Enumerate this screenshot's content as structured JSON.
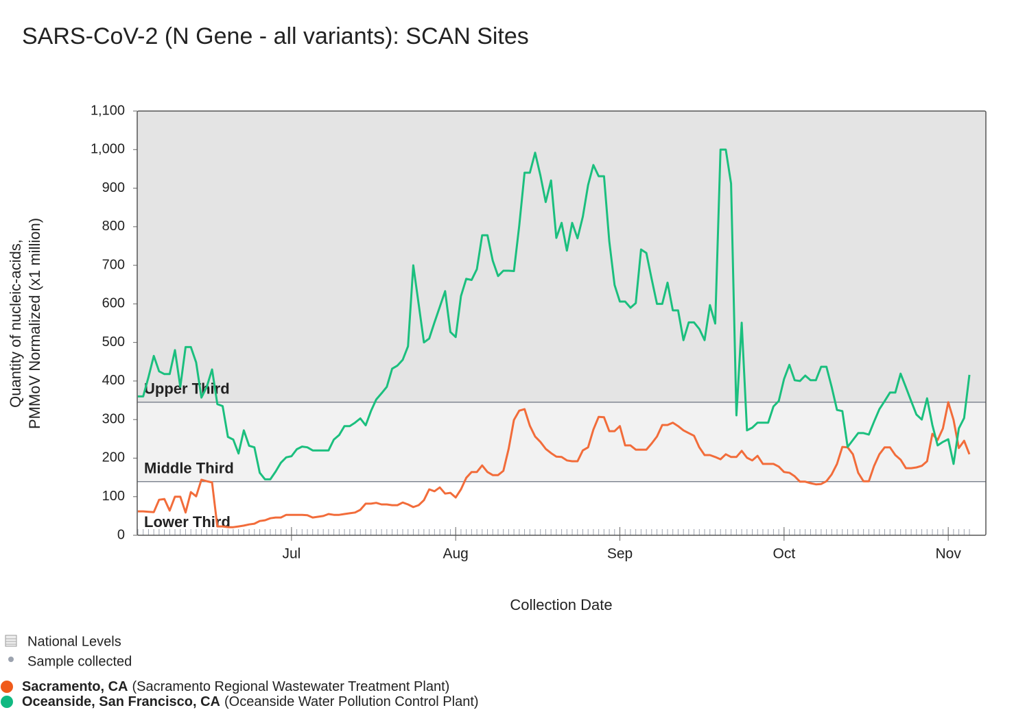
{
  "chart_data": {
    "type": "line",
    "title": "SARS-CoV-2 (N Gene - all variants): SCAN Sites",
    "x_label": "Collection Date",
    "y_label": [
      "Quantity of nucleic-acids,",
      "PMMoV Normalized (x1 million)"
    ],
    "ylim": [
      0,
      1100
    ],
    "yticks": [
      0,
      100,
      200,
      300,
      400,
      500,
      600,
      700,
      800,
      900,
      {
        "value": 1000,
        "label": "1,000"
      },
      {
        "value": 1100,
        "label": "1,100"
      }
    ],
    "bands": [
      {
        "label": "Lower Third",
        "from": 0,
        "to": 139,
        "color": "#ffffff"
      },
      {
        "label": "Middle Third",
        "from": 139,
        "to": 345,
        "color": "#f2f2f2"
      },
      {
        "label": "Upper Third",
        "from": 345,
        "to": 1100,
        "color": "#e4e4e4"
      }
    ],
    "legend_extra": [
      "National Levels",
      "Sample collected"
    ],
    "categories": [
      null,
      null,
      null,
      null,
      null,
      null,
      null,
      null,
      null,
      null,
      null,
      null,
      null,
      null,
      null,
      null,
      null,
      null,
      null,
      null,
      null,
      null,
      null,
      null,
      null,
      null,
      null,
      null,
      null,
      "Jul",
      null,
      null,
      null,
      null,
      null,
      null,
      null,
      null,
      null,
      null,
      null,
      null,
      null,
      null,
      null,
      null,
      null,
      null,
      null,
      null,
      null,
      null,
      null,
      null,
      null,
      null,
      null,
      null,
      null,
      null,
      "Aug",
      null,
      null,
      null,
      null,
      null,
      null,
      null,
      null,
      null,
      null,
      null,
      null,
      null,
      null,
      null,
      null,
      null,
      null,
      null,
      null,
      null,
      null,
      null,
      null,
      null,
      null,
      null,
      null,
      null,
      null,
      "Sep",
      null,
      null,
      null,
      null,
      null,
      null,
      null,
      null,
      null,
      null,
      null,
      null,
      null,
      null,
      null,
      null,
      null,
      null,
      null,
      null,
      null,
      null,
      null,
      null,
      null,
      null,
      null,
      null,
      null,
      null,
      "Oct",
      null,
      null,
      null,
      null,
      null,
      null,
      null,
      null,
      null,
      null,
      null,
      null,
      null,
      null,
      null,
      null,
      null,
      null,
      null,
      null,
      null,
      null,
      null,
      null,
      null,
      null,
      null,
      null,
      null,
      null,
      "Nov",
      null,
      null,
      null,
      null
    ],
    "series": [
      {
        "name": "Sacramento, CA",
        "site": "(Sacramento Regional Wastewater Treatment Plant)",
        "color": "#f26c3a",
        "marker_color": "#f05a1a",
        "values": [
          62,
          62,
          61,
          60,
          92,
          94,
          64,
          100,
          100,
          59,
          112,
          101,
          144,
          140,
          137,
          23,
          23,
          21,
          21,
          23,
          25,
          28,
          30,
          37,
          39,
          44,
          46,
          46,
          53,
          53,
          53,
          53,
          52,
          46,
          48,
          50,
          55,
          53,
          53,
          55,
          57,
          59,
          66,
          82,
          82,
          84,
          80,
          80,
          78,
          78,
          85,
          80,
          73,
          78,
          91,
          119,
          114,
          124,
          108,
          110,
          98,
          119,
          149,
          164,
          164,
          181,
          164,
          156,
          156,
          167,
          224,
          299,
          323,
          327,
          284,
          256,
          242,
          224,
          213,
          204,
          203,
          194,
          192,
          192,
          220,
          228,
          274,
          307,
          306,
          270,
          270,
          283,
          233,
          233,
          222,
          222,
          222,
          238,
          256,
          286,
          286,
          292,
          283,
          272,
          265,
          258,
          228,
          208,
          208,
          203,
          197,
          210,
          203,
          203,
          219,
          201,
          194,
          206,
          185,
          185,
          185,
          178,
          164,
          162,
          153,
          139,
          139,
          135,
          132,
          133,
          140,
          158,
          185,
          229,
          228,
          210,
          162,
          140,
          140,
          180,
          210,
          228,
          228,
          208,
          196,
          174,
          174,
          176,
          180,
          192,
          263,
          247,
          277,
          345,
          299,
          226,
          245,
          210
        ]
      },
      {
        "name": "Oceanside, San Francisco, CA",
        "site": "(Oceanside Water Pollution Control Plant)",
        "color": "#1bbf7e",
        "marker_color": "#10b981",
        "values": [
          360,
          360,
          410,
          465,
          425,
          418,
          418,
          480,
          385,
          488,
          488,
          448,
          357,
          385,
          430,
          340,
          335,
          255,
          248,
          212,
          272,
          232,
          228,
          162,
          145,
          145,
          165,
          188,
          202,
          205,
          223,
          230,
          228,
          220,
          220,
          220,
          220,
          248,
          260,
          283,
          283,
          292,
          303,
          285,
          322,
          352,
          368,
          385,
          432,
          440,
          455,
          490,
          700,
          600,
          500,
          510,
          552,
          592,
          633,
          527,
          514,
          620,
          665,
          662,
          690,
          778,
          778,
          712,
          672,
          686,
          686,
          685,
          802,
          940,
          940,
          992,
          933,
          864,
          920,
          771,
          810,
          738,
          810,
          770,
          826,
          908,
          960,
          931,
          931,
          762,
          649,
          606,
          606,
          590,
          602,
          741,
          732,
          665,
          600,
          600,
          655,
          583,
          583,
          506,
          552,
          552,
          535,
          506,
          597,
          549,
          1000,
          1000,
          912,
          311,
          551,
          272,
          279,
          292,
          292,
          292,
          334,
          348,
          405,
          442,
          402,
          400,
          414,
          402,
          402,
          437,
          437,
          384,
          325,
          322,
          229,
          247,
          265,
          265,
          261,
          295,
          327,
          348,
          370,
          370,
          419,
          384,
          348,
          313,
          300,
          355,
          286,
          233,
          242,
          249,
          185,
          277,
          304,
          416
        ]
      }
    ]
  }
}
